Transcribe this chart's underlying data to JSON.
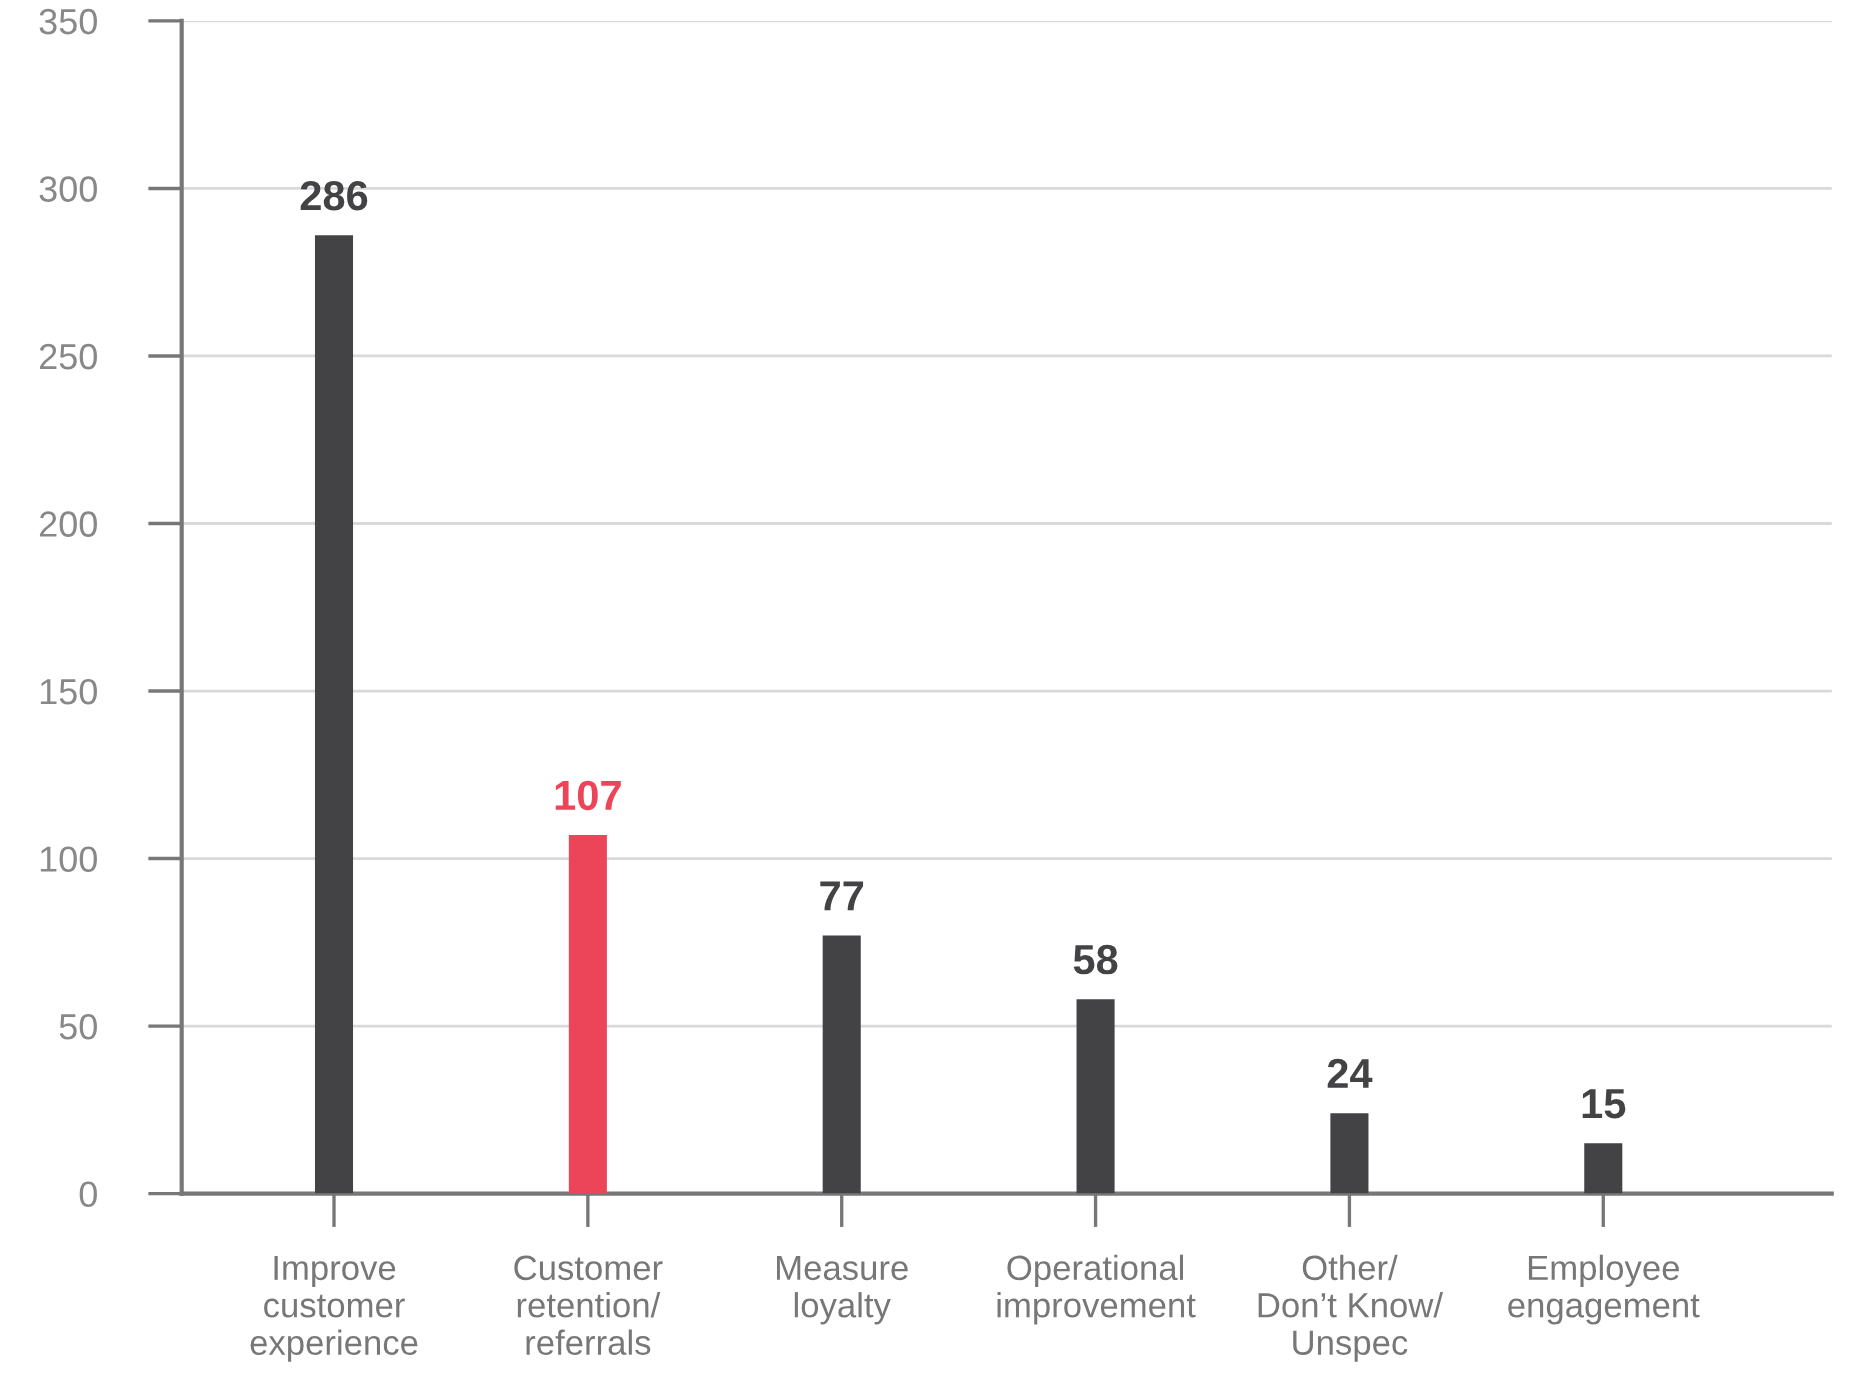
{
  "chart_data": {
    "type": "bar",
    "categories": [
      "Improve\ncustomer\nexperience",
      "Customer\nretention/\nreferrals",
      "Measure\nloyalty",
      "Operational\nimprovement",
      "Other/\nDon’t Know/\nUnspec",
      "Employee\nengagement"
    ],
    "values": [
      286,
      107,
      77,
      58,
      24,
      15
    ],
    "colors": [
      "#434345",
      "#ec4559",
      "#434345",
      "#434345",
      "#434345",
      "#434345"
    ],
    "data_labels": true,
    "ylim": [
      0,
      350
    ],
    "yticks": [
      0,
      50,
      100,
      150,
      200,
      250,
      300,
      350
    ],
    "grid": "y",
    "legend": false
  }
}
